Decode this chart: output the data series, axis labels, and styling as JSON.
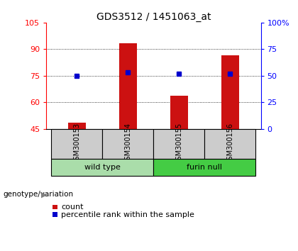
{
  "title": "GDS3512 / 1451063_at",
  "samples": [
    "GSM300153",
    "GSM300154",
    "GSM300155",
    "GSM300156"
  ],
  "counts": [
    48.5,
    93.5,
    63.5,
    86.5
  ],
  "percentiles": [
    50.0,
    53.0,
    51.5,
    52.0
  ],
  "groups": [
    {
      "label": "wild type",
      "samples": [
        0,
        1
      ],
      "color": "#aaddaa"
    },
    {
      "label": "furin null",
      "samples": [
        2,
        3
      ],
      "color": "#44cc44"
    }
  ],
  "left_ylim": [
    45,
    105
  ],
  "left_yticks": [
    45,
    60,
    75,
    90,
    105
  ],
  "right_ylim": [
    0,
    100
  ],
  "right_yticks": [
    0,
    25,
    50,
    75,
    100
  ],
  "right_yticklabels": [
    "0",
    "25",
    "50",
    "75",
    "100%"
  ],
  "bar_color": "#cc1111",
  "percentile_color": "#0000cc",
  "bar_width": 0.35,
  "grid_yticks": [
    60,
    75,
    90
  ],
  "legend_count_label": "count",
  "legend_pct_label": "percentile rank within the sample"
}
